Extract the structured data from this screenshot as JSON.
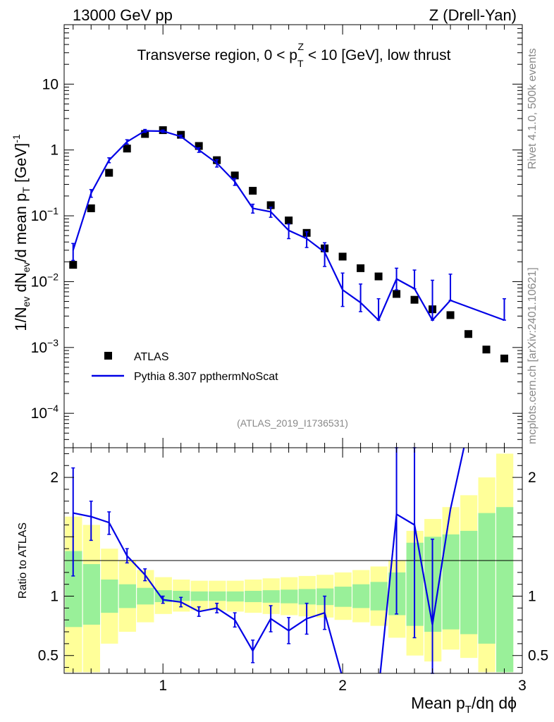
{
  "header": {
    "left": "13000 GeV pp",
    "right": "Z (Drell-Yan)"
  },
  "side_labels": {
    "rivet": "Rivet 4.1.0,  500k events",
    "mcplots": "mcplots.cern.ch [arXiv:2401.10621]"
  },
  "chart_data": [
    {
      "type": "scatter",
      "panel": "main",
      "title": "Transverse region, 0 < p_T^Z < 10 [GeV], low thrust",
      "ylabel": "1/N_ev dN_ev/d mean p_T [GeV]^-1",
      "yscale": "log",
      "ylim": [
        3e-05,
        80
      ],
      "xlim": [
        0.45,
        3.0
      ],
      "analysis_tag": "(ATLAS_2019_I1736531)",
      "y_ticks": [
        {
          "value": 10,
          "label": "10"
        },
        {
          "value": 1,
          "label": "1"
        },
        {
          "value": 0.1,
          "label": "10^-1"
        },
        {
          "value": 0.01,
          "label": "10^-2"
        },
        {
          "value": 0.001,
          "label": "10^-3"
        },
        {
          "value": 0.0001,
          "label": "10^-4"
        }
      ],
      "legend": {
        "position": "bottom-left",
        "entries": [
          {
            "label": "ATLAS",
            "style": "marker"
          },
          {
            "label": "Pythia 8.307 ppthermNoScat",
            "style": "line"
          }
        ]
      },
      "series": [
        {
          "name": "ATLAS",
          "color": "#000000",
          "x": [
            0.5,
            0.6,
            0.7,
            0.8,
            0.9,
            1.0,
            1.1,
            1.2,
            1.3,
            1.4,
            1.5,
            1.6,
            1.7,
            1.8,
            1.9,
            2.0,
            2.1,
            2.2,
            2.3,
            2.4,
            2.5,
            2.6,
            2.7,
            2.8,
            2.9
          ],
          "y": [
            0.018,
            0.13,
            0.45,
            1.05,
            1.75,
            2.0,
            1.7,
            1.15,
            0.7,
            0.41,
            0.24,
            0.145,
            0.085,
            0.055,
            0.032,
            0.024,
            0.016,
            0.012,
            0.0065,
            0.0053,
            0.0038,
            0.0031,
            0.0016,
            0.00093,
            0.00068
          ]
        },
        {
          "name": "Pythia 8.307 ppthermNoScat",
          "color": "#0000e6",
          "x": [
            0.5,
            0.6,
            0.7,
            0.8,
            0.9,
            1.0,
            1.1,
            1.2,
            1.3,
            1.4,
            1.5,
            1.6,
            1.7,
            1.8,
            1.9,
            2.0,
            2.1,
            2.2,
            2.3,
            2.4,
            2.5,
            2.6,
            2.9
          ],
          "y": [
            0.03,
            0.22,
            0.7,
            1.33,
            1.95,
            1.93,
            1.6,
            1.0,
            0.63,
            0.33,
            0.13,
            0.115,
            0.06,
            0.045,
            0.028,
            0.0075,
            0.0048,
            0.0026,
            0.011,
            0.0078,
            0.0026,
            0.0052,
            0.0026
          ],
          "err_lo": [
            0.021,
            0.191,
            0.64,
            1.23,
            1.85,
            1.85,
            1.52,
            0.92,
            0.55,
            0.29,
            0.11,
            0.095,
            0.045,
            0.033,
            0.017,
            0.0042,
            0.0035,
            0.0026,
            0.0075,
            0.0078,
            0.0026,
            0.0052,
            0.0026
          ],
          "err_hi": [
            0.038,
            0.25,
            0.76,
            1.43,
            2.05,
            2.01,
            1.68,
            1.08,
            0.71,
            0.37,
            0.15,
            0.135,
            0.075,
            0.057,
            0.039,
            0.0135,
            0.0092,
            0.0055,
            0.016,
            0.015,
            0.0105,
            0.013,
            0.0055
          ]
        }
      ]
    },
    {
      "type": "line",
      "panel": "ratio",
      "ylabel": "Ratio to ATLAS",
      "xlabel": "Mean p_T/dη dϕ",
      "ylim": [
        0.35,
        2.25
      ],
      "xlim": [
        0.45,
        3.0
      ],
      "y_ticks": [
        {
          "value": 2,
          "label": "2"
        },
        {
          "value": 1,
          "label": "1"
        },
        {
          "value": 0.5,
          "label": "0.5"
        }
      ],
      "x_ticks": [
        {
          "value": 1,
          "label": "1"
        },
        {
          "value": 2,
          "label": "2"
        },
        {
          "value": 3,
          "label": "3"
        }
      ],
      "bands": {
        "edges": [
          0.45,
          0.55,
          0.65,
          0.75,
          0.85,
          0.95,
          1.05,
          1.15,
          1.25,
          1.35,
          1.45,
          1.55,
          1.65,
          1.75,
          1.85,
          1.95,
          2.05,
          2.15,
          2.25,
          2.35,
          2.45,
          2.55,
          2.65,
          2.75,
          2.85,
          2.95
        ],
        "yellow_lo": [
          0.36,
          0.36,
          0.6,
          0.7,
          0.78,
          0.85,
          0.87,
          0.88,
          0.88,
          0.87,
          0.86,
          0.85,
          0.84,
          0.83,
          0.82,
          0.8,
          0.78,
          0.75,
          0.65,
          0.5,
          0.45,
          0.55,
          0.48,
          0.36,
          0.36
        ],
        "yellow_hi": [
          1.67,
          1.6,
          1.4,
          1.3,
          1.22,
          1.16,
          1.14,
          1.13,
          1.13,
          1.13,
          1.14,
          1.15,
          1.16,
          1.17,
          1.18,
          1.2,
          1.22,
          1.25,
          1.3,
          1.55,
          1.65,
          1.75,
          1.85,
          2.0,
          2.2
        ],
        "green_lo": [
          0.74,
          0.76,
          0.86,
          0.9,
          0.93,
          0.95,
          0.96,
          0.96,
          0.96,
          0.955,
          0.95,
          0.945,
          0.94,
          0.93,
          0.925,
          0.91,
          0.9,
          0.88,
          0.84,
          0.75,
          0.7,
          0.72,
          0.68,
          0.6,
          0.36
        ],
        "green_hi": [
          1.38,
          1.27,
          1.14,
          1.1,
          1.07,
          1.05,
          1.045,
          1.04,
          1.04,
          1.04,
          1.045,
          1.05,
          1.055,
          1.06,
          1.065,
          1.08,
          1.1,
          1.12,
          1.2,
          1.45,
          1.5,
          1.52,
          1.55,
          1.7,
          1.75
        ]
      },
      "series": [
        {
          "name": "Pythia 8.307 ppthermNoScat / ATLAS",
          "color": "#0000e6",
          "x": [
            0.5,
            0.6,
            0.7,
            0.8,
            0.9,
            1.0,
            1.1,
            1.2,
            1.3,
            1.4,
            1.5,
            1.6,
            1.7,
            1.8,
            1.9,
            2.0,
            2.1,
            2.2,
            2.3,
            2.4,
            2.5,
            2.6,
            2.9
          ],
          "y": [
            1.7,
            1.67,
            1.62,
            1.34,
            1.18,
            0.97,
            0.95,
            0.87,
            0.9,
            0.8,
            0.54,
            0.81,
            0.71,
            0.81,
            0.86,
            0.31,
            0.3,
            0.21,
            1.69,
            1.6,
            0.76,
            1.73,
            3.8
          ],
          "err_lo": [
            1.17,
            1.47,
            1.52,
            1.28,
            1.13,
            0.94,
            0.91,
            0.83,
            0.86,
            0.74,
            0.44,
            0.7,
            0.6,
            0.68,
            0.72,
            null,
            null,
            null,
            0.85,
            0.65,
            0.25,
            null,
            null
          ],
          "err_hi": [
            2.08,
            1.8,
            1.71,
            1.4,
            1.23,
            1.0,
            0.99,
            0.91,
            0.94,
            0.86,
            0.63,
            0.92,
            0.82,
            0.94,
            1.0,
            null,
            null,
            null,
            2.28,
            2.25,
            1.48,
            null,
            null
          ]
        }
      ]
    }
  ]
}
